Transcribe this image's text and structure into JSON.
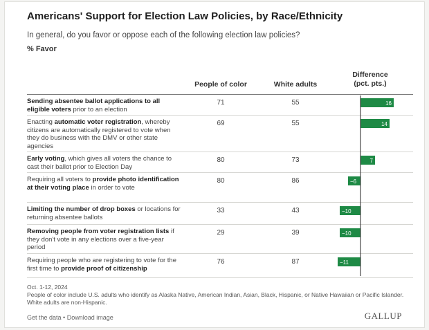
{
  "title": "Americans' Support for Election Law Policies, by Race/Ethnicity",
  "subtitle": "In general, do you favor or oppose each of the following election law policies?",
  "unit_label": "% Favor",
  "columns": {
    "poc": "People of color",
    "white": "White adults",
    "diff_line1": "Difference",
    "diff_line2": "(pct. pts.)"
  },
  "chart_data": {
    "type": "table",
    "title": "Americans' Support for Election Law Policies, by Race/Ethnicity",
    "rows": [
      {
        "pre": "",
        "bold": "Sending absentee ballot applications to all eligible voters",
        "post": " prior to an election",
        "people_of_color": 71,
        "white_adults": 55,
        "difference": 16
      },
      {
        "pre": "Enacting ",
        "bold": "automatic voter registration",
        "post": ", whereby citizens are automatically registered to vote when they do business with the DMV or other state agencies",
        "people_of_color": 69,
        "white_adults": 55,
        "difference": 14
      },
      {
        "pre": "",
        "bold": "Early voting",
        "post": ", which gives all voters the chance to cast their ballot prior to Election Day",
        "people_of_color": 80,
        "white_adults": 73,
        "difference": 7
      },
      {
        "pre": "Requiring all voters to ",
        "bold": "provide photo identification at their voting place",
        "post": " in order to vote",
        "people_of_color": 80,
        "white_adults": 86,
        "difference": -6
      },
      {
        "pre": "",
        "bold": "Limiting the number of drop boxes",
        "post": " or locations for returning absentee ballots",
        "people_of_color": 33,
        "white_adults": 43,
        "difference": -10
      },
      {
        "pre": "",
        "bold": "Removing people from voter registration lists",
        "post": " if they don't vote in any elections over a five-year period",
        "people_of_color": 29,
        "white_adults": 39,
        "difference": -10
      },
      {
        "pre": "Requiring people who are registering to vote for the first time to ",
        "bold": "provide proof of citizenship",
        "post": "",
        "people_of_color": 76,
        "white_adults": 87,
        "difference": -11
      }
    ],
    "difference_range": [
      -11,
      16
    ],
    "bar_color": "#1e8a45"
  },
  "footer": {
    "date": "Oct. 1-12, 2024",
    "note1": "People of color include U.S. adults who identify as Alaska Native, American Indian, Asian, Black, Hispanic, or Native Hawaiian or Pacific Islander.",
    "note2": "White adults are non-Hispanic."
  },
  "links": {
    "get_data": "Get the data",
    "separator": " • ",
    "download": "Download image"
  },
  "brand": "GALLUP"
}
